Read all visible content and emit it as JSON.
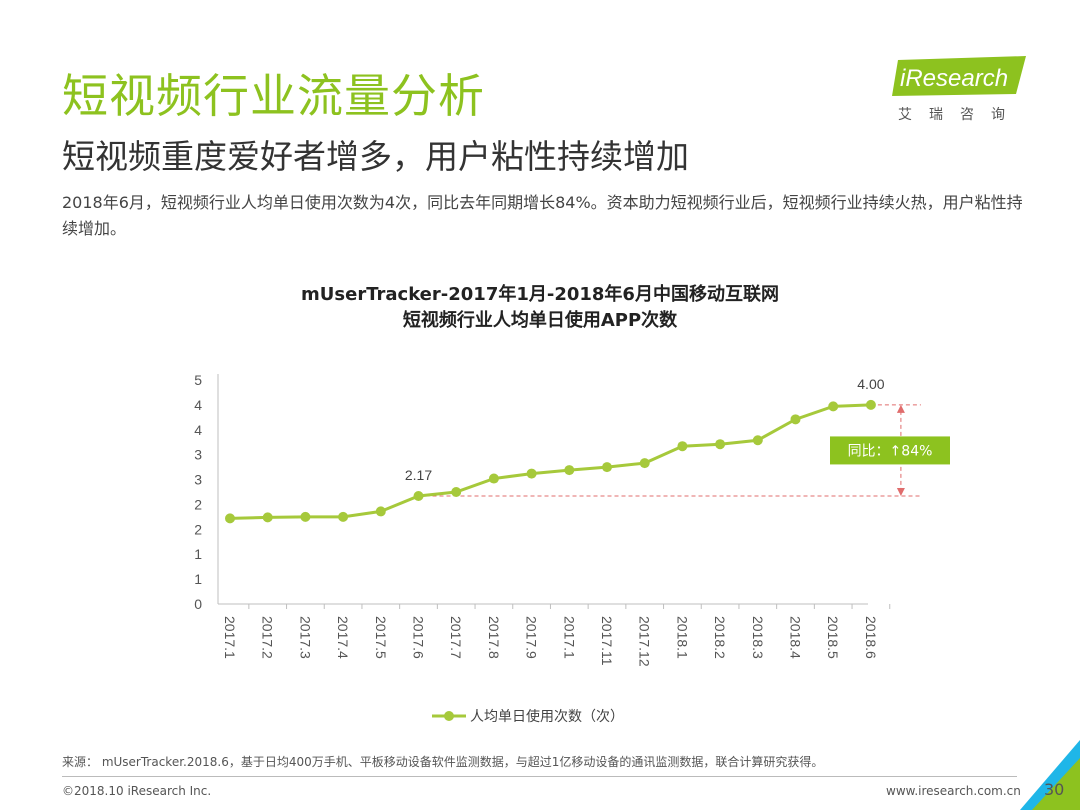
{
  "header": {
    "title": "短视频行业流量分析",
    "subtitle": "短视频重度爱好者增多，用户粘性持续增加",
    "summary": "2018年6月，短视频行业人均单日使用次数为4次，同比去年同期增长84%。资本助力短视频行业后，短视频行业持续火热，用户粘性持续增加。"
  },
  "logo": {
    "name": "iResearch",
    "sub": "艾瑞咨询"
  },
  "chart_data": {
    "type": "line",
    "title_line1": "mUserTracker-2017年1月-2018年6月中国移动互联网",
    "title_line2": "短视频行业人均单日使用APP次数",
    "categories": [
      "2017.1",
      "2017.2",
      "2017.3",
      "2017.4",
      "2017.5",
      "2017.6",
      "2017.7",
      "2017.8",
      "2017.9",
      "2017.1",
      "2017.11",
      "2017.12",
      "2018.1",
      "2018.2",
      "2018.3",
      "2018.4",
      "2018.5",
      "2018.6"
    ],
    "series": [
      {
        "name": "人均单日使用次数（次）",
        "values": [
          1.72,
          1.74,
          1.75,
          1.75,
          1.86,
          2.17,
          2.25,
          2.52,
          2.62,
          2.69,
          2.75,
          2.83,
          3.17,
          3.21,
          3.29,
          3.71,
          3.97,
          4.0
        ],
        "color": "#a6c93b"
      }
    ],
    "ylim": [
      0,
      4.5
    ],
    "yticks": [
      0,
      0.5,
      1,
      1.5,
      2,
      2.5,
      3,
      3.5,
      4,
      4.5
    ],
    "ytick_labels": [
      "0",
      "1",
      "1",
      "2",
      "2",
      "3",
      "3",
      "4",
      "4",
      "5"
    ],
    "annotations": [
      {
        "index": 5,
        "label": "2.17"
      },
      {
        "index": 17,
        "label": "4.00"
      }
    ],
    "yoy_label": "同比：↑84%",
    "yoy_from": 2.17,
    "yoy_to": 4.0,
    "legend_position": "bottom",
    "grid": false,
    "colors": {
      "line": "#a6c93b",
      "ref": "#e06c6c",
      "badge": "#8dc21f"
    }
  },
  "footer": {
    "source": "来源： mUserTracker.2018.6，基于日均400万手机、平板移动设备软件监测数据，与超过1亿移动设备的通讯监测数据，联合计算研究获得。",
    "copyright": "©2018.10 iResearch Inc.",
    "website": "www.iresearch.com.cn",
    "page_number": "30"
  }
}
